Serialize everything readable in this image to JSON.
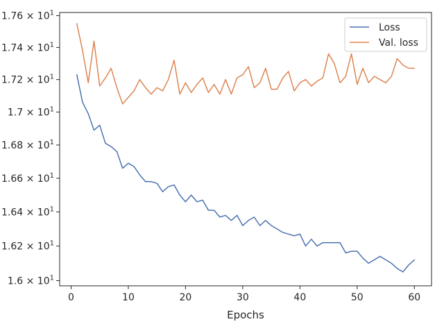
{
  "chart_data": {
    "type": "line",
    "title": "",
    "xlabel": "Epochs",
    "ylabel": "",
    "xlim": [
      -2,
      63
    ],
    "ylim": [
      15.97,
      17.62
    ],
    "x_ticks": [
      0,
      10,
      20,
      30,
      40,
      50,
      60
    ],
    "x_tick_labels": [
      "0",
      "10",
      "20",
      "30",
      "40",
      "50",
      "60"
    ],
    "y_ticks": [
      16.0,
      16.2,
      16.4,
      16.6,
      16.8,
      17.0,
      17.2,
      17.4,
      17.6
    ],
    "y_tick_labels": [
      {
        "mantissa": "1.6",
        "base": "10",
        "exp": "1"
      },
      {
        "mantissa": "1.62",
        "base": "10",
        "exp": "1"
      },
      {
        "mantissa": "1.64",
        "base": "10",
        "exp": "1"
      },
      {
        "mantissa": "1.66",
        "base": "10",
        "exp": "1"
      },
      {
        "mantissa": "1.68",
        "base": "10",
        "exp": "1"
      },
      {
        "mantissa": "1.7",
        "base": "10",
        "exp": "1"
      },
      {
        "mantissa": "1.72",
        "base": "10",
        "exp": "1"
      },
      {
        "mantissa": "1.74",
        "base": "10",
        "exp": "1"
      },
      {
        "mantissa": "1.76",
        "base": "10",
        "exp": "1"
      }
    ],
    "y_scale": "log",
    "grid": false,
    "legend_position": "top-right",
    "x": [
      1,
      2,
      3,
      4,
      5,
      6,
      7,
      8,
      9,
      10,
      11,
      12,
      13,
      14,
      15,
      16,
      17,
      18,
      19,
      20,
      21,
      22,
      23,
      24,
      25,
      26,
      27,
      28,
      29,
      30,
      31,
      32,
      33,
      34,
      35,
      36,
      37,
      38,
      39,
      40,
      41,
      42,
      43,
      44,
      45,
      46,
      47,
      48,
      49,
      50,
      51,
      52,
      53,
      54,
      55,
      56,
      57,
      58,
      59,
      60
    ],
    "series": [
      {
        "name": "Loss",
        "color": "#4c72b0",
        "values": [
          17.23,
          17.06,
          16.99,
          16.89,
          16.92,
          16.81,
          16.79,
          16.76,
          16.66,
          16.69,
          16.67,
          16.62,
          16.58,
          16.58,
          16.57,
          16.52,
          16.55,
          16.56,
          16.5,
          16.46,
          16.5,
          16.46,
          16.47,
          16.41,
          16.41,
          16.37,
          16.38,
          16.35,
          16.38,
          16.32,
          16.35,
          16.37,
          16.32,
          16.35,
          16.32,
          16.3,
          16.28,
          16.27,
          16.26,
          16.27,
          16.2,
          16.24,
          16.2,
          16.22,
          16.22,
          16.22,
          16.22,
          16.16,
          16.17,
          16.17,
          16.13,
          16.1,
          16.12,
          16.14,
          16.12,
          16.1,
          16.07,
          16.05,
          16.09,
          16.12
        ]
      },
      {
        "name": "Val. loss",
        "color": "#dd8452",
        "values": [
          17.55,
          17.38,
          17.18,
          17.44,
          17.16,
          17.21,
          17.27,
          17.15,
          17.05,
          17.09,
          17.13,
          17.2,
          17.15,
          17.11,
          17.15,
          17.13,
          17.2,
          17.32,
          17.11,
          17.18,
          17.12,
          17.17,
          17.21,
          17.12,
          17.17,
          17.11,
          17.2,
          17.11,
          17.21,
          17.23,
          17.28,
          17.15,
          17.18,
          17.27,
          17.14,
          17.14,
          17.21,
          17.25,
          17.13,
          17.18,
          17.2,
          17.16,
          17.19,
          17.21,
          17.36,
          17.3,
          17.18,
          17.22,
          17.36,
          17.17,
          17.27,
          17.18,
          17.22,
          17.2,
          17.18,
          17.22,
          17.33,
          17.29,
          17.27,
          17.27
        ]
      }
    ]
  }
}
